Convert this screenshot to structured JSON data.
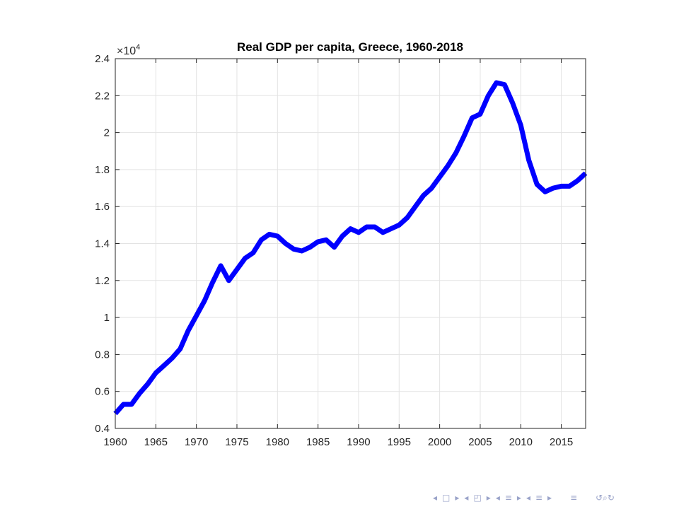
{
  "chart_data": {
    "type": "line",
    "title": "Real GDP per capita, Greece, 1960-2018",
    "xlabel": "",
    "ylabel": "",
    "xlim": [
      1960,
      2018
    ],
    "ylim": [
      0.4,
      2.4
    ],
    "y_multiplier_label": "×10",
    "y_multiplier_exponent": "4",
    "grid": true,
    "xticks": [
      1960,
      1965,
      1970,
      1975,
      1980,
      1985,
      1990,
      1995,
      2000,
      2005,
      2010,
      2015
    ],
    "xtick_labels": [
      "1960",
      "1965",
      "1970",
      "1975",
      "1980",
      "1985",
      "1990",
      "1995",
      "2000",
      "2005",
      "2010",
      "2015"
    ],
    "yticks": [
      0.4,
      0.6,
      0.8,
      1,
      1.2,
      1.4,
      1.6,
      1.8,
      2,
      2.2,
      2.4
    ],
    "ytick_labels": [
      "0.4",
      "0.6",
      "0.8",
      "1",
      "1.2",
      "1.4",
      "1.6",
      "1.8",
      "2",
      "2.2",
      "2.4"
    ],
    "series": [
      {
        "color": "#0000ff",
        "x": [
          1960,
          1961,
          1962,
          1963,
          1964,
          1965,
          1966,
          1967,
          1968,
          1969,
          1970,
          1971,
          1972,
          1973,
          1974,
          1975,
          1976,
          1977,
          1978,
          1979,
          1980,
          1981,
          1982,
          1983,
          1984,
          1985,
          1986,
          1987,
          1988,
          1989,
          1990,
          1991,
          1992,
          1993,
          1994,
          1995,
          1996,
          1997,
          1998,
          1999,
          2000,
          2001,
          2002,
          2003,
          2004,
          2005,
          2006,
          2007,
          2008,
          2009,
          2010,
          2011,
          2012,
          2013,
          2014,
          2015,
          2016,
          2017,
          2018
        ],
        "y": [
          0.48,
          0.53,
          0.53,
          0.59,
          0.64,
          0.7,
          0.74,
          0.78,
          0.83,
          0.93,
          1.01,
          1.09,
          1.19,
          1.28,
          1.2,
          1.26,
          1.32,
          1.35,
          1.42,
          1.45,
          1.44,
          1.4,
          1.37,
          1.36,
          1.38,
          1.41,
          1.42,
          1.38,
          1.44,
          1.48,
          1.46,
          1.49,
          1.49,
          1.46,
          1.48,
          1.5,
          1.54,
          1.6,
          1.66,
          1.7,
          1.76,
          1.82,
          1.89,
          1.98,
          2.08,
          2.1,
          2.2,
          2.27,
          2.26,
          2.16,
          2.04,
          1.85,
          1.72,
          1.68,
          1.7,
          1.71,
          1.71,
          1.74,
          1.78
        ]
      }
    ]
  },
  "nav": {
    "frame_left": "◂",
    "frame_box": "□",
    "frame_right": "▸",
    "sub_left": "◂",
    "sub_box": "◰",
    "sub_right": "▸",
    "sec_left": "◂",
    "sec_box": "≡",
    "sec_right": "▸",
    "subsec_left": "◂",
    "subsec_box": "≡",
    "subsec_right": "▸",
    "doc": "≡",
    "search": "↺⌕↻"
  }
}
